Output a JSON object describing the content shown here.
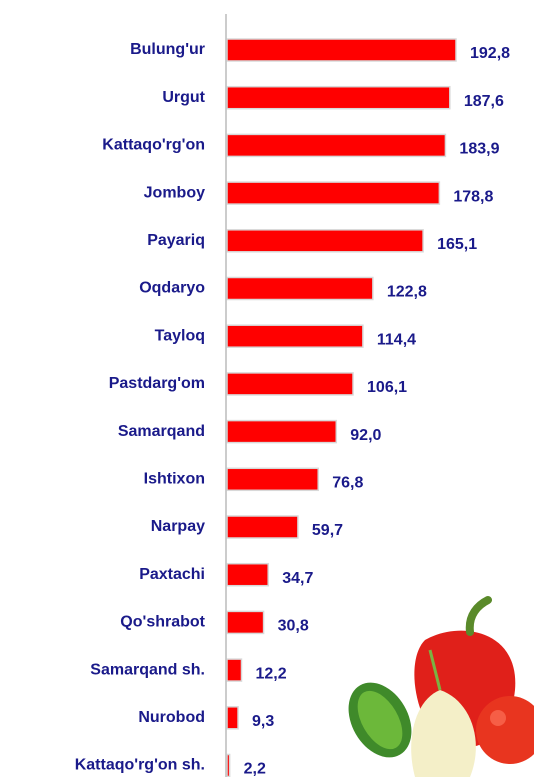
{
  "chart_data": {
    "type": "barh",
    "categories": [
      "Bulung'ur",
      "Urgut",
      "Kattaqo'rg'on",
      "Jomboy",
      "Payariq",
      "Oqdaryo",
      "Tayloq",
      "Pastdarg'om",
      "Samarqand",
      "Ishtixon",
      "Narpay",
      "Paxtachi",
      "Qo'shrabot",
      "Samarqand sh.",
      "Nurobod",
      "Kattaqo'rg'on sh."
    ],
    "values": [
      192.8,
      187.6,
      183.9,
      178.8,
      165.1,
      122.8,
      114.4,
      106.1,
      92.0,
      76.8,
      59.7,
      34.7,
      30.8,
      12.2,
      9.3,
      2.2
    ],
    "value_labels": [
      "192,8",
      "187,6",
      "183,9",
      "178,8",
      "165,1",
      "122,8",
      "114,4",
      "106,1",
      "92,0",
      "76,8",
      "59,7",
      "34,7",
      "30,8",
      "12,2",
      "9,3",
      "2,2"
    ],
    "color": "#ff0000"
  }
}
